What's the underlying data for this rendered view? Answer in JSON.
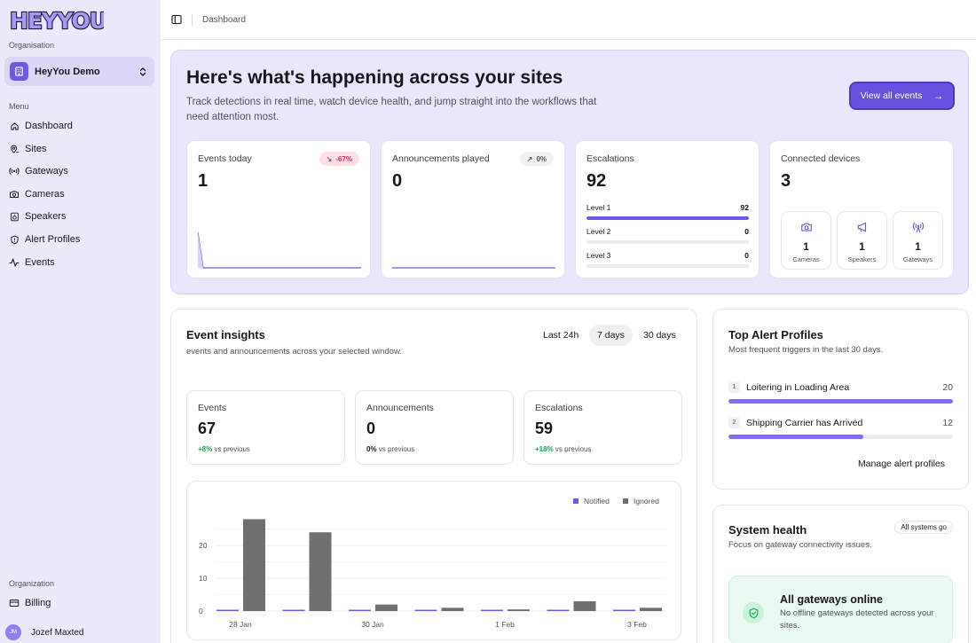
{
  "sidebar": {
    "logo_text": "HEYYOU",
    "org_section": "Organisation",
    "org_name": "HeyYou Demo",
    "menu_label": "Menu",
    "items": [
      {
        "label": "Dashboard",
        "icon": "home-icon"
      },
      {
        "label": "Sites",
        "icon": "map-pin-icon"
      },
      {
        "label": "Gateways",
        "icon": "radio-icon"
      },
      {
        "label": "Cameras",
        "icon": "camera-icon"
      },
      {
        "label": "Speakers",
        "icon": "speaker-icon"
      },
      {
        "label": "Alert Profiles",
        "icon": "shield-icon"
      },
      {
        "label": "Events",
        "icon": "activity-icon"
      }
    ],
    "bottom_section": "Organization",
    "billing_label": "Billing",
    "user_initials": "JM",
    "user_name": "Jozef Maxted"
  },
  "topbar": {
    "breadcrumb": "Dashboard"
  },
  "hero": {
    "title": "Here's what's happening across your sites",
    "subtitle": "Track detections in real time, watch device health, and jump straight into the workflows that need attention most.",
    "button_label": "View all events",
    "cards": {
      "events_today": {
        "label": "Events today",
        "value": "1",
        "badge": "-67%"
      },
      "announcements": {
        "label": "Announcements played",
        "value": "0",
        "badge": "0%"
      },
      "escalations": {
        "label": "Escalations",
        "value": "92",
        "levels": [
          {
            "label": "Level 1",
            "value": "92",
            "fraction": 1.0
          },
          {
            "label": "Level 2",
            "value": "0",
            "fraction": 0
          },
          {
            "label": "Level 3",
            "value": "0",
            "fraction": 0
          }
        ]
      },
      "devices": {
        "label": "Connected devices",
        "value": "3",
        "items": [
          {
            "value": "1",
            "label": "Cameras",
            "icon": "camera-icon"
          },
          {
            "value": "1",
            "label": "Speakers",
            "icon": "megaphone-icon"
          },
          {
            "value": "1",
            "label": "Gateways",
            "icon": "radio-icon"
          }
        ]
      }
    }
  },
  "insights": {
    "title": "Event insights",
    "subtitle": "events and announcements across your selected window.",
    "ranges": [
      "Last 24h",
      "7 days",
      "30 days"
    ],
    "active_range": "7 days",
    "metrics": [
      {
        "label": "Events",
        "value": "67",
        "delta": "+8%",
        "suffix": " vs previous"
      },
      {
        "label": "Announcements",
        "value": "0",
        "delta": "0%",
        "suffix": " vs previous"
      },
      {
        "label": "Escalations",
        "value": "59",
        "delta": "+18%",
        "suffix": " vs previous"
      }
    ]
  },
  "chart_data": {
    "type": "bar",
    "categories": [
      "28 Jan",
      "29 Jan",
      "30 Jan",
      "31 Jan",
      "1 Feb",
      "2 Feb",
      "3 Feb"
    ],
    "x_tick_labels": [
      "28 Jan",
      "30 Jan",
      "1 Feb",
      "3 Feb"
    ],
    "series": [
      {
        "name": "Notified",
        "color": "#6b5ae6",
        "values": [
          0,
          0,
          0,
          0,
          0,
          0,
          0
        ]
      },
      {
        "name": "Ignored",
        "color": "#6f6f6f",
        "values": [
          28,
          24,
          2,
          1,
          0.5,
          3,
          1
        ]
      }
    ],
    "y_ticks": [
      0,
      10,
      20
    ],
    "ylim": [
      0,
      30
    ],
    "legend": "top-right",
    "grid": true
  },
  "alert_profiles": {
    "title": "Top Alert Profiles",
    "subtitle": "Most frequent triggers in the last 30 days.",
    "items": [
      {
        "rank": "1",
        "name": "Loitering in Loading Area",
        "count": "20",
        "fraction": 1.0
      },
      {
        "rank": "2",
        "name": "Shipping Carrier has Arrived",
        "count": "12",
        "fraction": 0.6
      }
    ],
    "link_label": "Manage alert profiles"
  },
  "system_health": {
    "title": "System health",
    "subtitle": "Focus on gateway connectivity issues.",
    "badge": "All systems go",
    "status_title": "All gateways online",
    "status_text": "No offline gateways detected across your sites."
  }
}
